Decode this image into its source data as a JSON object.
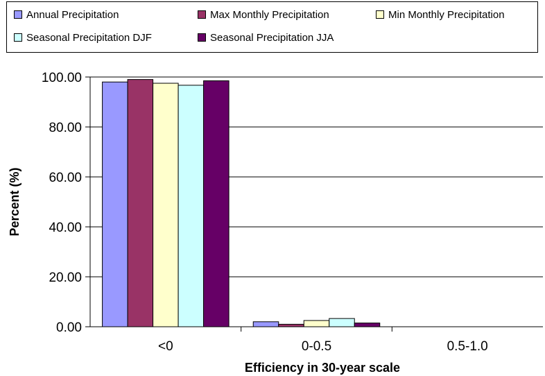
{
  "chart_data": {
    "type": "bar",
    "title": "",
    "xlabel": "Efficiency in 30-year scale",
    "ylabel": "Percent (%)",
    "categories": [
      "<0",
      "0-0.5",
      "0.5-1.0"
    ],
    "ylim": [
      0,
      100
    ],
    "yticks": [
      "0.00",
      "20.00",
      "40.00",
      "60.00",
      "80.00",
      "100.00"
    ],
    "grid": true,
    "legend_position": "top",
    "series": [
      {
        "name": "Annual Precipitation",
        "color": "#9999ff",
        "values": [
          98.0,
          2.0,
          0.0
        ]
      },
      {
        "name": "Max Monthly Precipitation",
        "color": "#993366",
        "values": [
          99.0,
          1.0,
          0.0
        ]
      },
      {
        "name": "Min Monthly Precipitation",
        "color": "#ffffcc",
        "values": [
          97.5,
          2.5,
          0.0
        ]
      },
      {
        "name": "Seasonal Precipitation DJF",
        "color": "#ccffff",
        "values": [
          96.7,
          3.3,
          0.0
        ]
      },
      {
        "name": "Seasonal Precipitation JJA",
        "color": "#660066",
        "values": [
          98.5,
          1.5,
          0.0
        ]
      }
    ]
  }
}
